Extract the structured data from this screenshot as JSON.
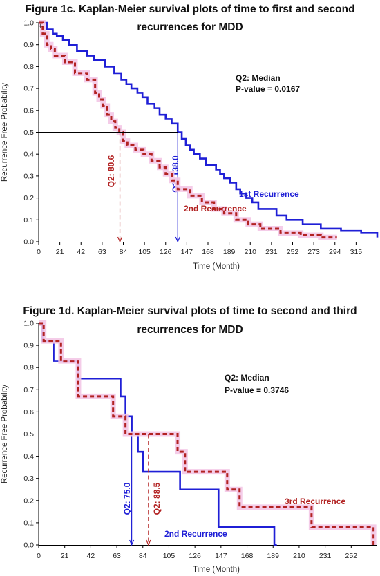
{
  "chart_data": [
    {
      "type": "line",
      "title_lines": [
        "Figure 1c. Kaplan-Meier survival plots of time to first and second",
        "recurrences for MDD"
      ],
      "xlabel": "Time (Month)",
      "ylabel": "Recurrence Free Probability",
      "xlim": [
        0,
        336
      ],
      "ylim": [
        0,
        1.0
      ],
      "x_ticks": [
        0,
        21,
        42,
        63,
        84,
        105,
        126,
        147,
        168,
        189,
        210,
        231,
        252,
        273,
        294,
        315
      ],
      "y_ticks": [
        0.0,
        0.1,
        0.2,
        0.3,
        0.4,
        0.5,
        0.6,
        0.7,
        0.8,
        0.9,
        1.0
      ],
      "annotation_lines": [
        "Q2: Median",
        "P-value = 0.0167"
      ],
      "reference_line_y": 0.5,
      "series": [
        {
          "name": "1st Recurrence",
          "color": "#1f1fd6",
          "style": "solid",
          "median": 138.0,
          "median_label": "Q2: 138.0",
          "x": [
            0,
            8,
            14,
            18,
            24,
            30,
            38,
            48,
            55,
            66,
            75,
            82,
            87,
            92,
            98,
            103,
            108,
            115,
            120,
            126,
            132,
            138,
            142,
            146,
            150,
            154,
            160,
            166,
            176,
            180,
            184,
            190,
            196,
            200,
            206,
            212,
            218,
            236,
            246,
            262,
            280,
            300,
            320,
            336
          ],
          "y": [
            1.0,
            0.97,
            0.95,
            0.94,
            0.92,
            0.9,
            0.87,
            0.85,
            0.83,
            0.8,
            0.77,
            0.74,
            0.72,
            0.7,
            0.68,
            0.66,
            0.63,
            0.61,
            0.58,
            0.56,
            0.54,
            0.5,
            0.47,
            0.44,
            0.42,
            0.4,
            0.38,
            0.35,
            0.33,
            0.31,
            0.29,
            0.27,
            0.24,
            0.22,
            0.2,
            0.18,
            0.15,
            0.12,
            0.1,
            0.08,
            0.06,
            0.05,
            0.04,
            0.02
          ]
        },
        {
          "name": "2nd Recurrence",
          "color": "#b22222",
          "style": "dashed",
          "median": 80.6,
          "median_label": "Q2: 80.6",
          "x": [
            0,
            4,
            8,
            12,
            16,
            26,
            36,
            48,
            56,
            60,
            64,
            68,
            72,
            76,
            80,
            84,
            88,
            96,
            104,
            112,
            120,
            126,
            132,
            138,
            150,
            162,
            174,
            184,
            196,
            208,
            220,
            240,
            260,
            280,
            296
          ],
          "y": [
            1.0,
            0.95,
            0.9,
            0.88,
            0.85,
            0.82,
            0.77,
            0.74,
            0.68,
            0.65,
            0.62,
            0.58,
            0.55,
            0.52,
            0.5,
            0.46,
            0.44,
            0.42,
            0.4,
            0.37,
            0.34,
            0.31,
            0.28,
            0.24,
            0.21,
            0.18,
            0.15,
            0.13,
            0.1,
            0.08,
            0.06,
            0.04,
            0.03,
            0.02,
            0.02
          ]
        }
      ]
    },
    {
      "type": "line",
      "title_lines": [
        "Figure 1d. Kaplan-Meier survival plots of time to second and third",
        "recurrences for MDD"
      ],
      "xlabel": "Time (Month)",
      "ylabel": "Recurrence Free Probability",
      "xlim": [
        0,
        273
      ],
      "ylim": [
        0,
        1.0
      ],
      "x_ticks": [
        0,
        21,
        42,
        63,
        84,
        105,
        126,
        147,
        168,
        189,
        210,
        231,
        252
      ],
      "y_ticks": [
        0.0,
        0.1,
        0.2,
        0.3,
        0.4,
        0.5,
        0.6,
        0.7,
        0.8,
        0.9,
        1.0
      ],
      "annotation_lines": [
        "Q2: Median",
        "P-value = 0.3746"
      ],
      "reference_line_y": 0.5,
      "series": [
        {
          "name": "2nd Recurrence",
          "color": "#1f1fd6",
          "style": "solid",
          "median": 75.0,
          "median_label": "Q2: 75.0",
          "x": [
            0,
            3,
            12,
            32,
            66,
            70,
            75,
            80,
            84,
            114,
            145,
            190
          ],
          "y": [
            1.0,
            0.92,
            0.83,
            0.75,
            0.67,
            0.58,
            0.5,
            0.42,
            0.33,
            0.25,
            0.08,
            0.0
          ],
          "end_x": 192
        },
        {
          "name": "3rd Recurrence",
          "color": "#b22222",
          "style": "dashed",
          "median": 88.5,
          "median_label": "Q2: 88.5",
          "x": [
            0,
            4,
            18,
            32,
            60,
            70,
            90,
            112,
            118,
            152,
            162,
            168,
            220,
            270
          ],
          "y": [
            1.0,
            0.92,
            0.83,
            0.67,
            0.58,
            0.5,
            0.5,
            0.42,
            0.33,
            0.25,
            0.17,
            0.17,
            0.08,
            0.0
          ],
          "end_x": 270
        }
      ]
    }
  ]
}
